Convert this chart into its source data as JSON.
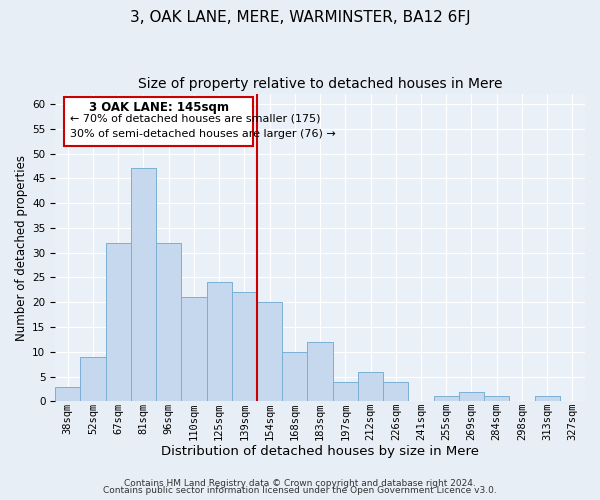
{
  "title": "3, OAK LANE, MERE, WARMINSTER, BA12 6FJ",
  "subtitle": "Size of property relative to detached houses in Mere",
  "xlabel": "Distribution of detached houses by size in Mere",
  "ylabel": "Number of detached properties",
  "footer_line1": "Contains HM Land Registry data © Crown copyright and database right 2024.",
  "footer_line2": "Contains public sector information licensed under the Open Government Licence v3.0.",
  "bin_labels": [
    "38sqm",
    "52sqm",
    "67sqm",
    "81sqm",
    "96sqm",
    "110sqm",
    "125sqm",
    "139sqm",
    "154sqm",
    "168sqm",
    "183sqm",
    "197sqm",
    "212sqm",
    "226sqm",
    "241sqm",
    "255sqm",
    "269sqm",
    "284sqm",
    "298sqm",
    "313sqm",
    "327sqm"
  ],
  "bin_values": [
    3,
    9,
    32,
    47,
    32,
    21,
    24,
    22,
    20,
    10,
    12,
    4,
    6,
    4,
    0,
    1,
    2,
    1,
    0,
    1,
    0
  ],
  "bar_color": "#c5d8ed",
  "bar_edge_color": "#7aafd4",
  "ylim": [
    0,
    62
  ],
  "yticks": [
    0,
    5,
    10,
    15,
    20,
    25,
    30,
    35,
    40,
    45,
    50,
    55,
    60
  ],
  "vline_x": 8.0,
  "vline_color": "#cc0000",
  "annotation_line1": "3 OAK LANE: 145sqm",
  "annotation_line2": "← 70% of detached houses are smaller (175)",
  "annotation_line3": "30% of semi-detached houses are larger (76) →",
  "annotation_box_color": "#cc0000",
  "bg_color": "#e8eef5",
  "plot_bg_color": "#eaf0f8",
  "grid_color": "#ffffff",
  "title_fontsize": 11,
  "subtitle_fontsize": 10,
  "xlabel_fontsize": 9.5,
  "ylabel_fontsize": 8.5,
  "tick_fontsize": 7.5,
  "annotation_fontsize_title": 8.5,
  "annotation_fontsize_body": 8.0,
  "footer_fontsize": 6.5
}
